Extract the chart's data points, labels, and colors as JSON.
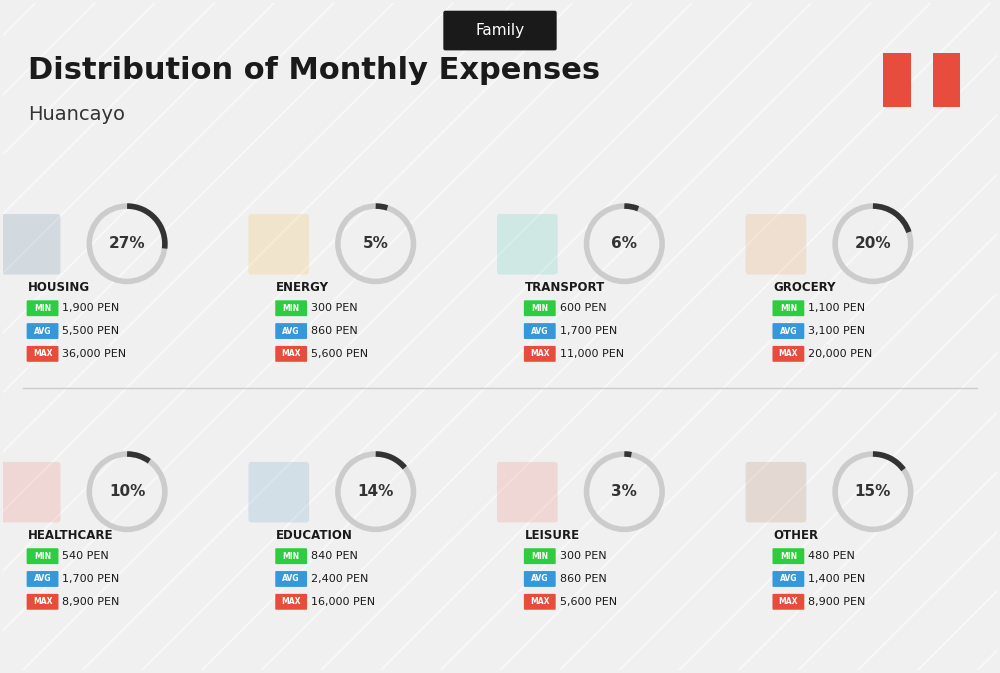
{
  "title": "Distribution of Monthly Expenses",
  "subtitle": "Huancayo",
  "header_label": "Family",
  "bg_color": "#f0f0f0",
  "categories": [
    {
      "name": "HOUSING",
      "pct": 27,
      "min_val": "1,900 PEN",
      "avg_val": "5,500 PEN",
      "max_val": "36,000 PEN",
      "row": 0,
      "col": 0
    },
    {
      "name": "ENERGY",
      "pct": 5,
      "min_val": "300 PEN",
      "avg_val": "860 PEN",
      "max_val": "5,600 PEN",
      "row": 0,
      "col": 1
    },
    {
      "name": "TRANSPORT",
      "pct": 6,
      "min_val": "600 PEN",
      "avg_val": "1,700 PEN",
      "max_val": "11,000 PEN",
      "row": 0,
      "col": 2
    },
    {
      "name": "GROCERY",
      "pct": 20,
      "min_val": "1,100 PEN",
      "avg_val": "3,100 PEN",
      "max_val": "20,000 PEN",
      "row": 0,
      "col": 3
    },
    {
      "name": "HEALTHCARE",
      "pct": 10,
      "min_val": "540 PEN",
      "avg_val": "1,700 PEN",
      "max_val": "8,900 PEN",
      "row": 1,
      "col": 0
    },
    {
      "name": "EDUCATION",
      "pct": 14,
      "min_val": "840 PEN",
      "avg_val": "2,400 PEN",
      "max_val": "16,000 PEN",
      "row": 1,
      "col": 1
    },
    {
      "name": "LEISURE",
      "pct": 3,
      "min_val": "300 PEN",
      "avg_val": "860 PEN",
      "max_val": "5,600 PEN",
      "row": 1,
      "col": 2
    },
    {
      "name": "OTHER",
      "pct": 15,
      "min_val": "480 PEN",
      "avg_val": "1,400 PEN",
      "max_val": "8,900 PEN",
      "row": 1,
      "col": 3
    }
  ],
  "min_color": "#2ecc40",
  "avg_color": "#3498db",
  "max_color": "#e74c3c",
  "label_color": "#ffffff",
  "arc_color": "#333333",
  "arc_bg_color": "#cccccc",
  "title_color": "#1a1a1a",
  "subtitle_color": "#333333",
  "header_bg": "#1a1a1a",
  "header_fg": "#ffffff",
  "peru_red": "#e74c3c",
  "peru_white": "#ffffff"
}
